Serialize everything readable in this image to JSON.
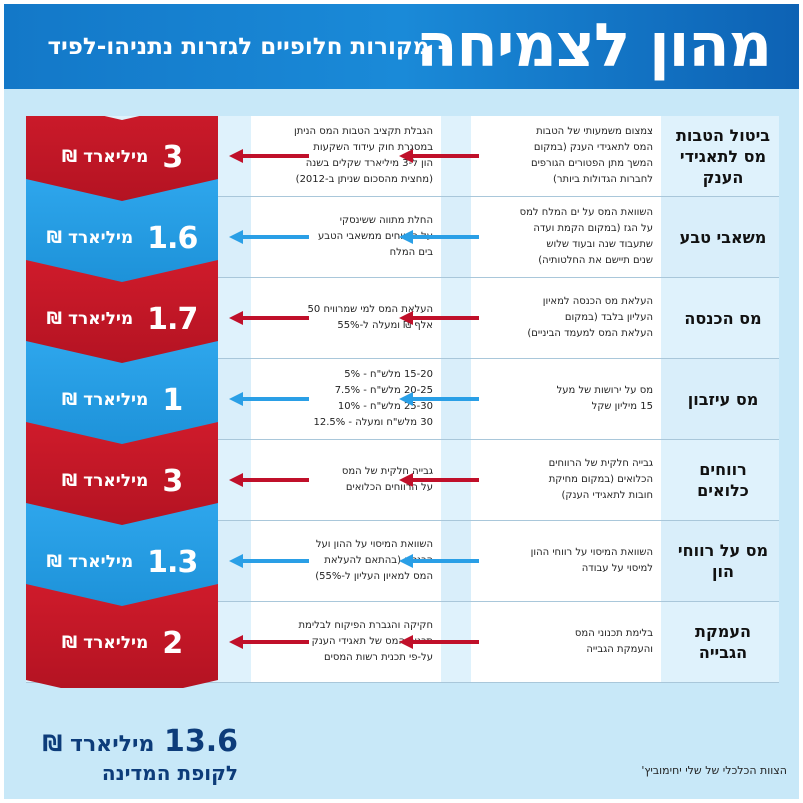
{
  "header": {
    "title": "מהון לצמיחה",
    "subtitle": "- מקורות חלופיים לגזרות נתניהו-לפיד"
  },
  "colors": {
    "header_blue": "#1a8ad8",
    "chevron_red": "#c4182a",
    "chevron_blue": "#2a9fe6",
    "arrow_red": "#c0102a",
    "arrow_blue": "#2a9fe6",
    "background": "#c8e8f8"
  },
  "rows": [
    {
      "label": "ביטול הטבות מס לתאגידי הענק",
      "current": "צמצום משמעותי של הטבות\nהמס לתאגידי הענק (במקום\nהמשך מתן הפטורים הגורפים\nלחברות הגדולות ביותר)",
      "proposal": "הגבלת תקציב הטבות המס הניתן\nבמסגרת חוק עידוד השקעות\nהון ל-3 מיליארד שקלים בשנה\n(מחצית מהסכום שניתן ב-2012)",
      "amount": "3",
      "unit": "מיליארד ₪",
      "color": "red"
    },
    {
      "label": "משאבי טבע",
      "current": "השוואת המס על ים המלח למס\nעל הגז (במקום הקמת ועדה\nשתעבוד שנה ובעוד שלוש\nשנים תיישם את החלטותיה)",
      "proposal": "החלת מתווה ששינסקי\nעל הרווחים ממשאבי הטבע\nבים המלח",
      "amount": "1.6",
      "unit": "מיליארד ₪",
      "color": "blue"
    },
    {
      "label": "מס הכנסה",
      "current": "העלאת מס הכנסה למאיון\nהעליון בלבד (במקום\nהעלאת המס למעמד הביניים)",
      "proposal": "העלאת המס למי שמרוויח 50\nאלף ₪ ומעלה ל-55%",
      "amount": "1.7",
      "unit": "מיליארד ₪",
      "color": "red"
    },
    {
      "label": "מס עיזבון",
      "current": "מס על ירושות של מעל\n15 מיליון שקל",
      "proposal": "15-20 מלש\"ח - 5%\n20-25 מלש\"ח - 7.5%\n25-30 מלש\"ח - 10%\n30 מלש\"ח ומעלה - 12.5%",
      "amount": "1",
      "unit": "מיליארד ₪",
      "color": "blue"
    },
    {
      "label": "רווחים כלואים",
      "current": "גבייה חלקית של הרווחים\nהכלואים (במקום מחיקת\nחובות לתאגידי הענק)",
      "proposal": "גבייה חלקית של המס\nעל הרווחים הכלואים",
      "amount": "3",
      "unit": "מיליארד ₪",
      "color": "red"
    },
    {
      "label": "מס על רווחי הון",
      "current": "השוואת המיסוי על רווחי ההון\nלמיסוי על עבודה",
      "proposal": "השוואת המיסוי על ההון ועל\nהכנסה (בהתאם להעלאת\nהמס למאיון העליון ל-55%)",
      "amount": "1.3",
      "unit": "מיליארד ₪",
      "color": "blue"
    },
    {
      "label": "העמקת הגבייה",
      "current": "בלימת תכנוני המס\nוהעמקת הגבייה",
      "proposal": "חקיקה והגברת הפיקוח לבלימת\nתכנוני המס של תאגידי הענק\nעל-פי תכנית רשות המסים",
      "amount": "2",
      "unit": "מיליארד ₪",
      "color": "red"
    }
  ],
  "total": {
    "amount": "13.6",
    "unit": "מיליארד ₪",
    "caption": "לקופת המדינה"
  },
  "credit": "הצוות הכלכלי של שלי יחימוביץ'"
}
